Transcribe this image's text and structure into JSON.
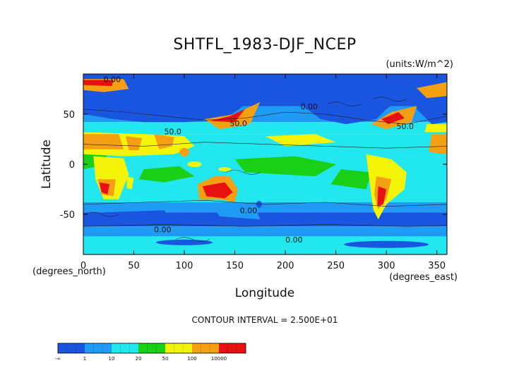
{
  "chart_data": {
    "type": "heatmap",
    "title": "SHTFL_1983-DJF_NCEP",
    "units": "(units:W/m^2)",
    "xlabel": "Longitude",
    "xlabel_unit": "(degrees_east)",
    "ylabel": "Latitude",
    "ylabel_unit": "(degrees_north)",
    "xlim": [
      0,
      360
    ],
    "ylim": [
      -90,
      90
    ],
    "x_ticks": [
      0,
      50,
      100,
      150,
      200,
      250,
      300,
      350
    ],
    "y_ticks": [
      50,
      0,
      -50
    ],
    "contour_note": "CONTOUR INTERVAL = 2.500E+01",
    "contour_labels": [
      "0.00",
      "50.0"
    ],
    "colorbar": {
      "labels": [
        "-∞",
        "1",
        "10",
        "20",
        "50",
        "100",
        "10000"
      ],
      "colors": [
        "#1a55e0",
        "#1f9bf5",
        "#22e7ee",
        "#19d017",
        "#f4f40a",
        "#f5a012",
        "#e81010"
      ]
    },
    "colors": {
      "ocean_low": "#1a55e0",
      "ocean_mid": "#1f9bf5",
      "ocean_cyan": "#22e7ee",
      "green": "#19d017",
      "yellow": "#f4f40a",
      "orange": "#f5a012",
      "red": "#e81010"
    }
  }
}
